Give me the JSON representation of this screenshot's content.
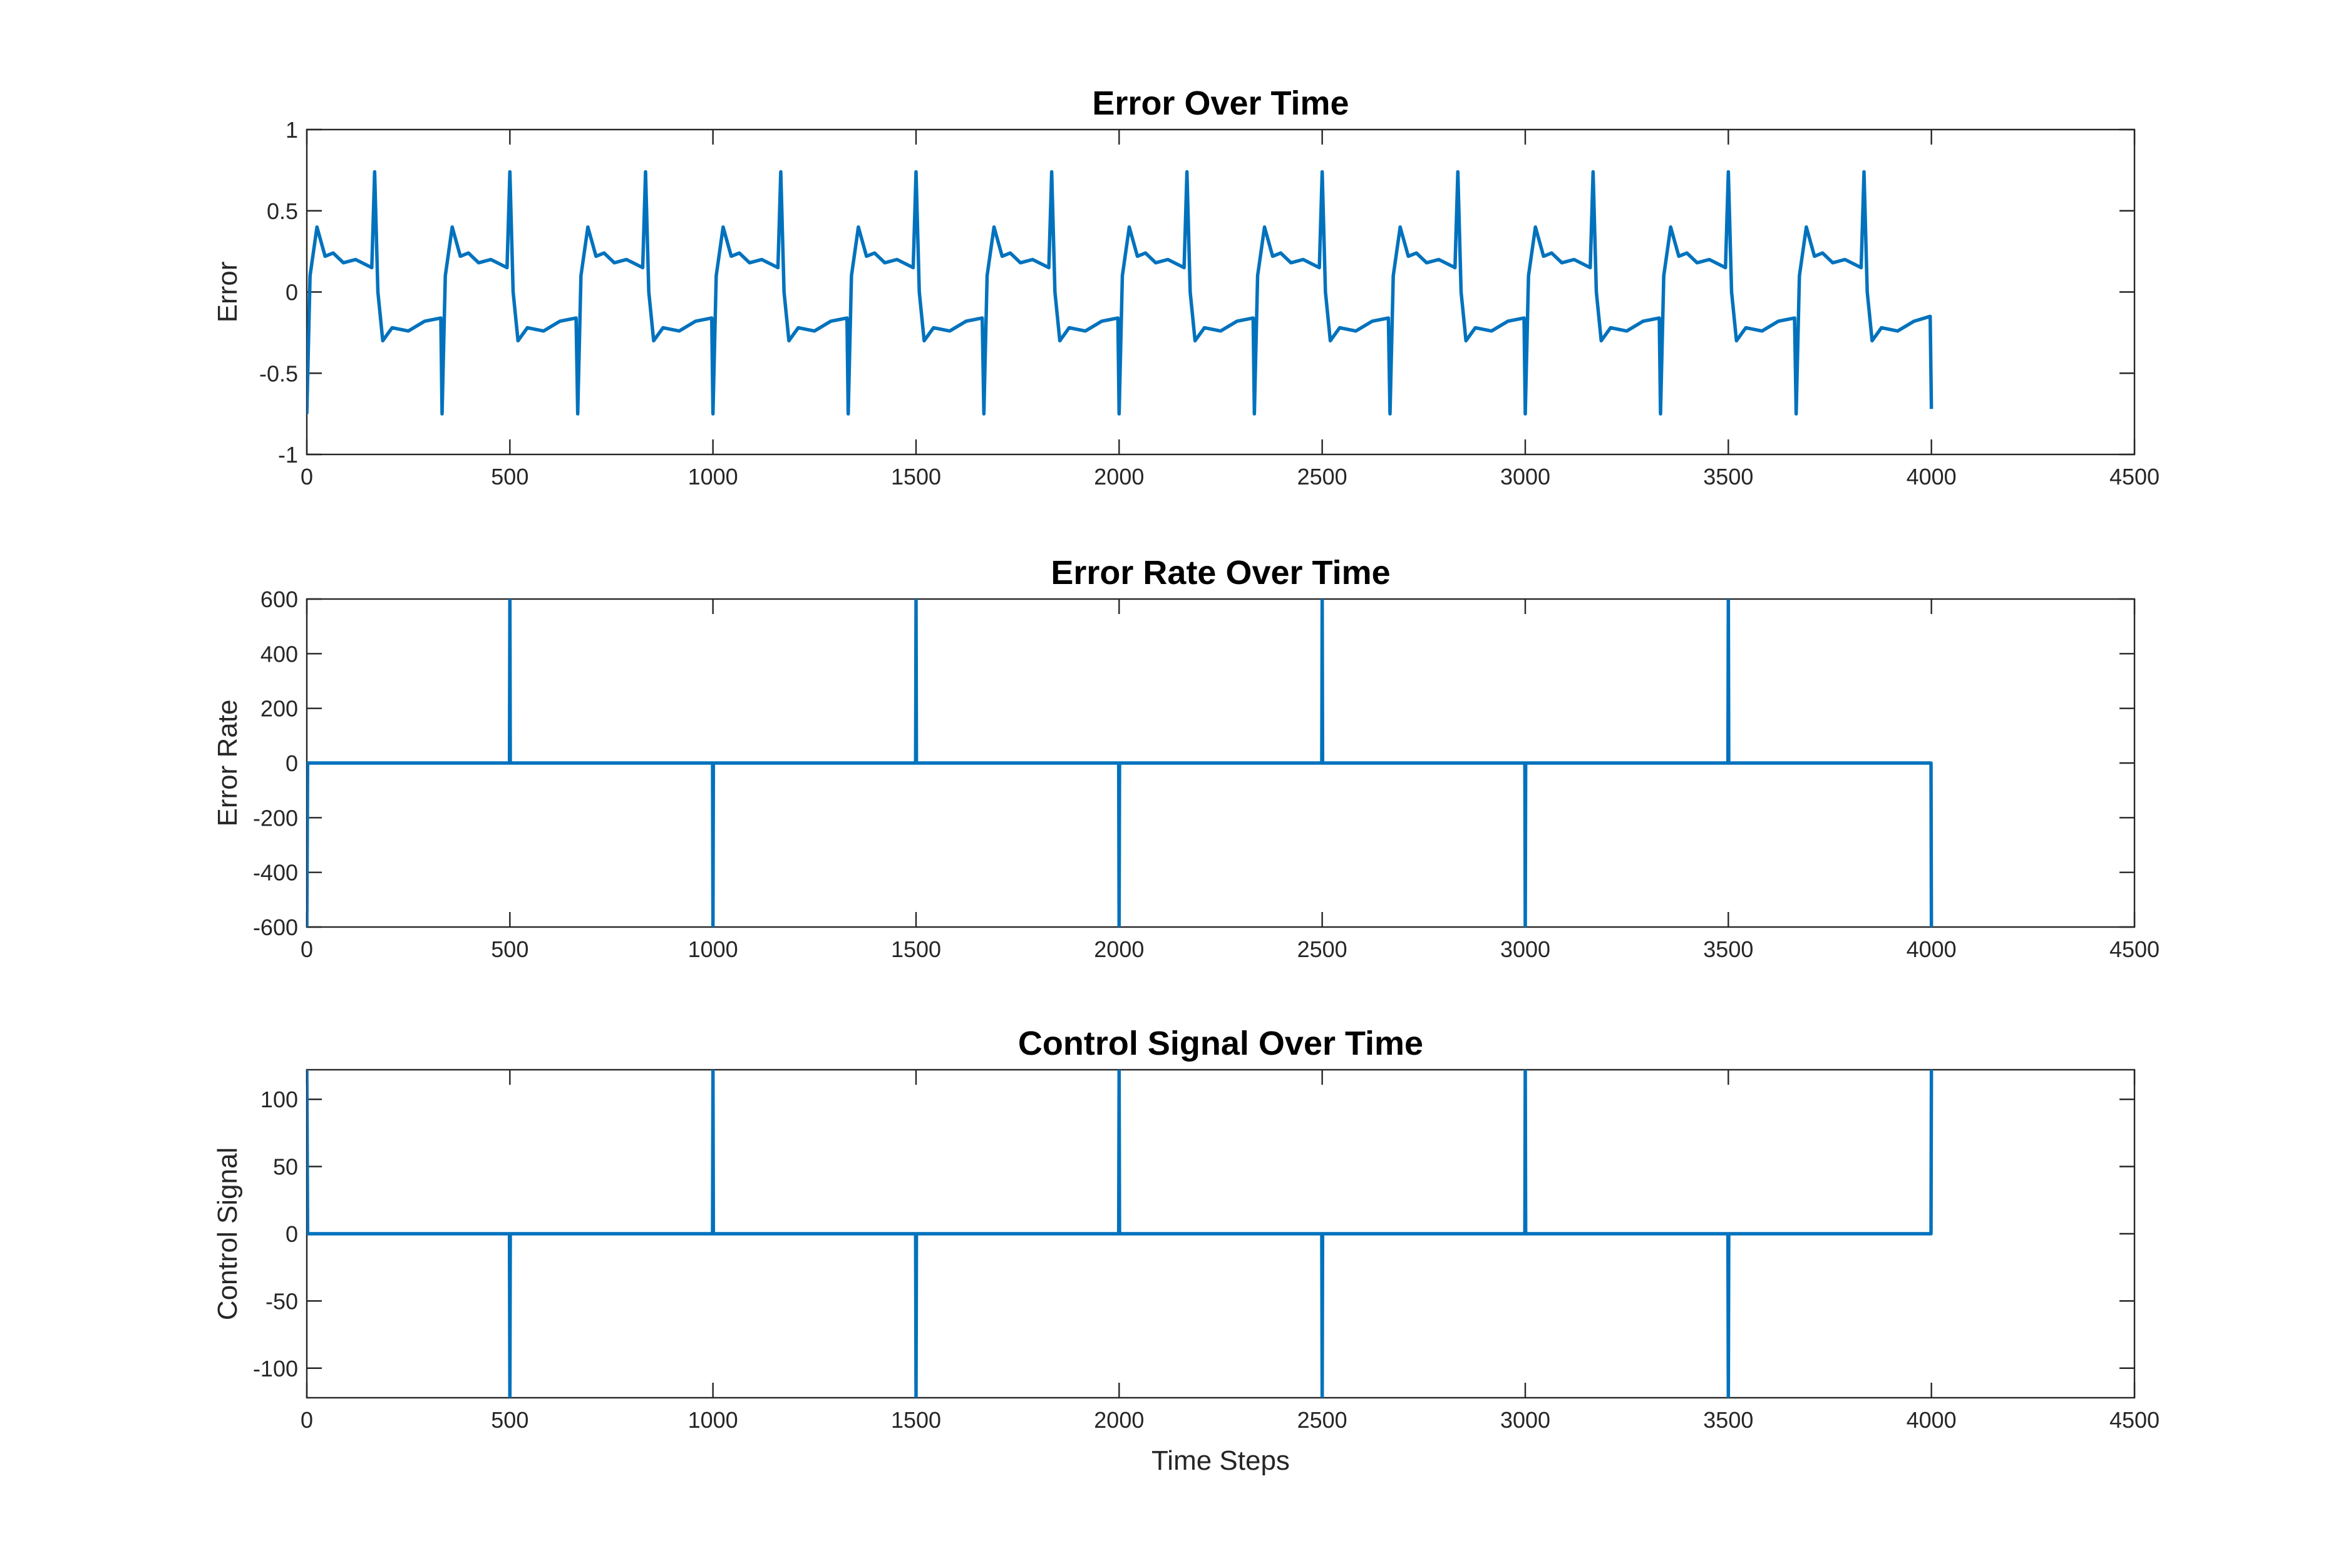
{
  "chart_data": [
    {
      "type": "line",
      "title": "Error Over Time",
      "ylabel": "Error",
      "color": "#0072bd",
      "xlim": [
        0,
        4500
      ],
      "xticks": [
        0,
        500,
        1000,
        1500,
        2000,
        2500,
        3000,
        3500,
        4000,
        4500
      ],
      "ylim": [
        -1,
        1
      ],
      "yticks": [
        -1,
        -0.5,
        0,
        0.5,
        1
      ],
      "x": [
        0,
        8,
        25,
        45,
        65,
        90,
        120,
        160,
        167,
        175,
        187,
        210,
        250,
        290,
        330,
        333,
        341,
        358,
        378,
        398,
        423,
        453,
        493,
        500,
        508,
        520,
        543,
        583,
        623,
        663,
        667,
        675,
        692,
        712,
        732,
        757,
        787,
        827,
        834,
        842,
        854,
        877,
        917,
        957,
        997,
        1000,
        1008,
        1025,
        1045,
        1065,
        1090,
        1120,
        1160,
        1167,
        1175,
        1187,
        1210,
        1250,
        1290,
        1330,
        1333,
        1341,
        1358,
        1378,
        1398,
        1423,
        1453,
        1493,
        1500,
        1508,
        1520,
        1543,
        1583,
        1623,
        1663,
        1667,
        1675,
        1692,
        1712,
        1732,
        1757,
        1787,
        1827,
        1834,
        1842,
        1854,
        1877,
        1917,
        1957,
        1997,
        2000,
        2008,
        2025,
        2045,
        2065,
        2090,
        2120,
        2160,
        2167,
        2175,
        2187,
        2210,
        2250,
        2290,
        2330,
        2333,
        2341,
        2358,
        2378,
        2398,
        2423,
        2453,
        2493,
        2500,
        2508,
        2520,
        2543,
        2583,
        2623,
        2663,
        2667,
        2675,
        2692,
        2712,
        2732,
        2757,
        2787,
        2827,
        2834,
        2842,
        2854,
        2877,
        2917,
        2957,
        2997,
        3000,
        3008,
        3025,
        3045,
        3065,
        3090,
        3120,
        3160,
        3167,
        3175,
        3187,
        3210,
        3250,
        3290,
        3330,
        3333,
        3341,
        3358,
        3378,
        3398,
        3423,
        3453,
        3493,
        3500,
        3508,
        3520,
        3543,
        3583,
        3623,
        3663,
        3667,
        3675,
        3692,
        3712,
        3732,
        3757,
        3787,
        3827,
        3834,
        3842,
        3854,
        3877,
        3917,
        3957,
        3997,
        4000
      ],
      "values": [
        -0.75,
        0.1,
        0.4,
        0.22,
        0.24,
        0.18,
        0.2,
        0.15,
        0.74,
        0,
        -0.3,
        -0.22,
        -0.24,
        -0.18,
        -0.16,
        -0.75,
        0.1,
        0.4,
        0.22,
        0.24,
        0.18,
        0.2,
        0.15,
        0.74,
        0,
        -0.3,
        -0.22,
        -0.24,
        -0.18,
        -0.16,
        -0.75,
        0.1,
        0.4,
        0.22,
        0.24,
        0.18,
        0.2,
        0.15,
        0.74,
        0,
        -0.3,
        -0.22,
        -0.24,
        -0.18,
        -0.16,
        -0.75,
        0.1,
        0.4,
        0.22,
        0.24,
        0.18,
        0.2,
        0.15,
        0.74,
        0,
        -0.3,
        -0.22,
        -0.24,
        -0.18,
        -0.16,
        -0.75,
        0.1,
        0.4,
        0.22,
        0.24,
        0.18,
        0.2,
        0.15,
        0.74,
        0,
        -0.3,
        -0.22,
        -0.24,
        -0.18,
        -0.16,
        -0.75,
        0.1,
        0.4,
        0.22,
        0.24,
        0.18,
        0.2,
        0.15,
        0.74,
        0,
        -0.3,
        -0.22,
        -0.24,
        -0.18,
        -0.16,
        -0.75,
        0.1,
        0.4,
        0.22,
        0.24,
        0.18,
        0.2,
        0.15,
        0.74,
        0,
        -0.3,
        -0.22,
        -0.24,
        -0.18,
        -0.16,
        -0.75,
        0.1,
        0.4,
        0.22,
        0.24,
        0.18,
        0.2,
        0.15,
        0.74,
        0,
        -0.3,
        -0.22,
        -0.24,
        -0.18,
        -0.16,
        -0.75,
        0.1,
        0.4,
        0.22,
        0.24,
        0.18,
        0.2,
        0.15,
        0.74,
        0,
        -0.3,
        -0.22,
        -0.24,
        -0.18,
        -0.16,
        -0.75,
        0.1,
        0.4,
        0.22,
        0.24,
        0.18,
        0.2,
        0.15,
        0.74,
        0,
        -0.3,
        -0.22,
        -0.24,
        -0.18,
        -0.16,
        -0.75,
        0.1,
        0.4,
        0.22,
        0.24,
        0.18,
        0.2,
        0.15,
        0.74,
        0,
        -0.3,
        -0.22,
        -0.24,
        -0.18,
        -0.16,
        -0.75,
        0.1,
        0.4,
        0.22,
        0.24,
        0.18,
        0.2,
        0.15,
        0.74,
        0,
        -0.3,
        -0.22,
        -0.24,
        -0.18,
        -0.15,
        -0.72
      ]
    },
    {
      "type": "line",
      "title": "Error Rate Over Time",
      "ylabel": "Error Rate",
      "color": "#0072bd",
      "xlim": [
        0,
        4500
      ],
      "xticks": [
        0,
        500,
        1000,
        1500,
        2000,
        2500,
        3000,
        3500,
        4000,
        4500
      ],
      "ylim": [
        -600,
        600
      ],
      "yticks": [
        -600,
        -400,
        -200,
        0,
        200,
        400,
        600
      ],
      "x": [
        0,
        2,
        499,
        500,
        501,
        999,
        1000,
        1001,
        1499,
        1500,
        1501,
        1999,
        2000,
        2001,
        2499,
        2500,
        2501,
        2999,
        3000,
        3001,
        3499,
        3500,
        3501,
        3999,
        4000
      ],
      "values": [
        -600,
        0,
        0,
        600,
        0,
        0,
        -600,
        0,
        0,
        600,
        0,
        0,
        -600,
        0,
        0,
        600,
        0,
        0,
        -600,
        0,
        0,
        600,
        0,
        0,
        -600
      ]
    },
    {
      "type": "line",
      "title": "Control Signal Over Time",
      "ylabel": "Control Signal",
      "xlabel": "Time Steps",
      "color": "#0072bd",
      "xlim": [
        0,
        4500
      ],
      "xticks": [
        0,
        500,
        1000,
        1500,
        2000,
        2500,
        3000,
        3500,
        4000,
        4500
      ],
      "ylim": [
        -122,
        122
      ],
      "yticks": [
        -100,
        -50,
        0,
        50,
        100
      ],
      "x": [
        0,
        2,
        499,
        500,
        501,
        999,
        1000,
        1001,
        1499,
        1500,
        1501,
        1999,
        2000,
        2001,
        2499,
        2500,
        2501,
        2999,
        3000,
        3001,
        3499,
        3500,
        3501,
        3999,
        4000
      ],
      "values": [
        122,
        0,
        0,
        -122,
        0,
        0,
        122,
        0,
        0,
        -122,
        0,
        0,
        122,
        0,
        0,
        -122,
        0,
        0,
        122,
        0,
        0,
        -122,
        0,
        0,
        122
      ]
    }
  ]
}
